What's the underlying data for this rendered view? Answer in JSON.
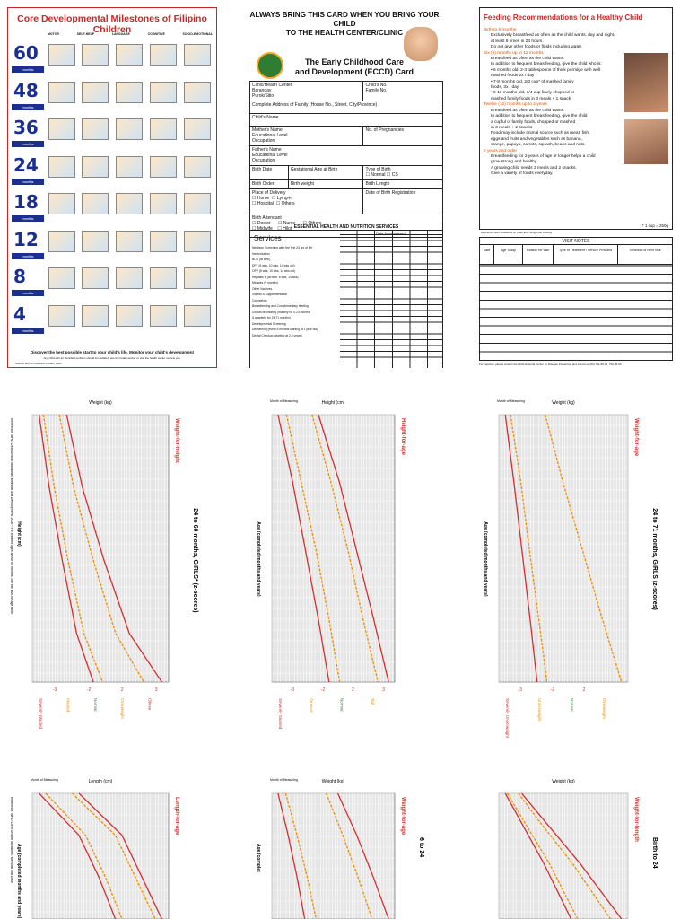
{
  "milestones": {
    "title": "Core Developmental Milestones of Filipino Children",
    "columns": [
      "MOTOR",
      "SELF-HELP",
      "LANGUAGE",
      "COGNITIVE",
      "SOCIO-EMOTIONAL"
    ],
    "ages": [
      {
        "value": "60",
        "unit": "months"
      },
      {
        "value": "48",
        "unit": "months"
      },
      {
        "value": "36",
        "unit": "months"
      },
      {
        "value": "24",
        "unit": "months"
      },
      {
        "value": "18",
        "unit": "months"
      },
      {
        "value": "12",
        "unit": "months"
      },
      {
        "value": "8",
        "unit": "months"
      },
      {
        "value": "4",
        "unit": "months"
      }
    ],
    "footer": "Discover the best possible start to your child's life. Monitor your child's development",
    "footer_small": "Any child with an identified problem should immediately see the health worker or visit the health center nearest you.",
    "source": "Source: ECCD Checklist, DSWD, 2005"
  },
  "eccd": {
    "top_line1": "ALWAYS BRING THIS CARD WHEN YOU BRING YOUR CHILD",
    "top_line2": "TO THE HEALTH CENTER/CLINIC",
    "title_line1": "The Early Childhood Care",
    "title_line2": "and Development (ECCD) Card",
    "fields": {
      "clinic": "Clinic/Health Center",
      "barangay": "Barangay",
      "purok": "Purok/Sitio",
      "child_no": "Child's No.",
      "family_no": "Family No.",
      "address": "Complete Address of Family (House No., Street, City/Province)",
      "child_name": "Child's Name",
      "mother_name": "Mother's Name",
      "mother_edu": "Educational Level",
      "mother_occ": "Occupation",
      "pregnancies": "No. of Pregnancies",
      "father_name": "Father's Name",
      "father_edu": "Educational Level",
      "father_occ": "Occupation",
      "birth_date": "Birth Date",
      "gest_age": "Gestational Age at Birth",
      "type_birth": "Type of Birth",
      "normal": "Normal",
      "cs": "CS",
      "birth_order": "Birth Order",
      "birth_weight": "Birth weight",
      "birth_length": "Birth Length",
      "place_delivery": "Place of Delivery",
      "home": "Home",
      "lying_in": "Lying-in",
      "hospital": "Hospital",
      "others": "Others",
      "reg_date": "Date of Birth Registration",
      "attendant": "Birth Attendant",
      "doctor": "Doctor",
      "nurse": "Nurse",
      "midwife": "Midwife",
      "hilot": "Hilot",
      "others2": "Others"
    },
    "services_header": "ESSENTIAL HEALTH AND NUTRITION SERVICES",
    "services_title": "Services",
    "date_admin": "Date Administered",
    "service_rows": [
      "Newborn Screening after the first 24 hrs of life",
      "Immunization",
      "BCG (at birth)",
      "DPT (6 wks, 10 wks, 14 wks old)",
      "OPV (6 wks, 10 wks, 14 wks old)",
      "Hepatitis B (at birth, 6 wks, 14 wks)",
      "Measles (9 months)",
      "Other Vaccines",
      "Vitamin A Supplementation",
      "Counseling",
      "Breastfeeding and Complementary feeding",
      "Growth Monitoring (monthly for 0-23 months",
      "& quarterly for 24-71 months)",
      "Developmental Screening",
      "Deworming (every 6 months starting at 1 year old)",
      "Dental Checkup (starting at 2-5 years)"
    ]
  },
  "feeding": {
    "title": "Feeding Recommendations for a Healthy Child",
    "sections": [
      {
        "head": "Birth to 6 months",
        "lines": [
          "Exclusively breastfeed as often as the child wants, day and night,",
          "at least 8 times in 24 hours.",
          "Do not give other foods or fluids including water."
        ]
      },
      {
        "head": "Six (6) months up to 12 months",
        "lines": [
          "Breastfeed as often as the child wants.",
          "In addition to frequent breastfeeding, give the child who is:",
          "• 6 months old, 2-3 tablespoons of thick porridge with well",
          "mashed foods 2x / day",
          "• 7-8 months old, 2/3 cup* of mashed family",
          "foods, 3x / day",
          "• 9-11 months old, 3/4 cup finely chopped or",
          "mashed family foods in 3 meals + 1 snack"
        ]
      },
      {
        "head": "Twelve (12) months up to 2 years",
        "lines": [
          "Breastfeed as often as the child wants.",
          "In addition to frequent breastfeeding, give the child",
          "a cupful of family foods, chopped or mashed",
          "in 3 meals + 2 snacks",
          "Food may include animal source such as meat, fish,",
          "eggs and fruits and vegetables such as banana,",
          "orange, papaya, carrots, squash, beans and nuts."
        ]
      },
      {
        "head": "2 years and older",
        "lines": [
          "Breastfeeding for 2 years of age or longer helps a child",
          "grow strong and healthy.",
          "A growing child needs 3 meals and 2 snacks.",
          "Give a variety of foods everyday."
        ]
      }
    ],
    "cup_note": "* 1 cup = 250g",
    "reference": "Reference: WHO Guidelines on Infant and Young Child Feeding",
    "visit_title": "VISIT NOTES",
    "visit_cols": [
      "Date",
      "Age Today",
      "Reason for Visit",
      "Type of Treatment / Service Provided",
      "Schedule of Next Visit"
    ],
    "inquiries": "For inquiries, please contact the DOH-National Center for Disease Prevention and Control at (02) 711-95-05, 732-95-56"
  },
  "charts": [
    {
      "name": "weight-for-height",
      "title": "Weight-for-height",
      "subtitle": "24 to 60 months, GIRLS* (z-scores)",
      "xlabel": "Weight (kg)",
      "ylabel": "Height (cm)",
      "note": "Reference: WHO Child Growth Standards: Methods and Development, 2006 * For children ages above 60 months, use the BMI-for-age table.",
      "zones": [
        "Severely Wasted",
        "Wasted",
        "Normal",
        "Overweight",
        "Obese"
      ],
      "zone_marks": [
        "-3",
        "-2",
        "2",
        "3"
      ],
      "chart_data": {
        "type": "line",
        "series": [
          {
            "name": "-3",
            "values": [
              7,
              8.4,
              10.2,
              12.2,
              14.5
            ]
          },
          {
            "name": "-2",
            "values": [
              7.6,
              9.1,
              11,
              13.2,
              15.8
            ]
          },
          {
            "name": "2",
            "values": [
              9.8,
              11.8,
              14.5,
              17.6,
              21.5
            ]
          },
          {
            "name": "3",
            "values": [
              10.8,
              13,
              16,
              19.5,
              24
            ]
          }
        ],
        "x": [
          65,
          80,
          95,
          110,
          120
        ]
      }
    },
    {
      "name": "height-for-age",
      "title": "Height-for-age",
      "xlabel": "Height (cm)",
      "ylabel": "Age (completed months and years)",
      "month_label": "Month of Measuring",
      "zones": [
        "Severely Stunted",
        "Stunted",
        "Normal",
        "Tall"
      ],
      "zone_marks": [
        "-3",
        "-2",
        "2",
        "3"
      ],
      "chart_data": {
        "type": "line",
        "series": [
          {
            "name": "-3",
            "values": [
              76,
              83,
              89,
              95,
              100
            ]
          },
          {
            "name": "-2",
            "values": [
              80,
              87,
              94,
              100,
              105
            ]
          },
          {
            "name": "2",
            "values": [
              92,
              101,
              109,
              116,
              123
            ]
          },
          {
            "name": "3",
            "values": [
              95,
              105,
              113,
              121,
              128
            ]
          }
        ],
        "x": [
          24,
          36,
          48,
          60,
          71
        ]
      }
    },
    {
      "name": "weight-for-age",
      "title": "Weight-for-age",
      "subtitle": "24 to 71 months, GIRLS (z-scores)",
      "xlabel": "Weight (kg)",
      "ylabel": "Age (completed months and years)",
      "month_label": "Month of Measuring",
      "zones": [
        "Severely Underweight",
        "Underweight",
        "Normal",
        "Overweight"
      ],
      "zone_marks": [
        "-3",
        "-2",
        "2"
      ],
      "chart_data": {
        "type": "line",
        "series": [
          {
            "name": "-3",
            "values": [
              8.1,
              9.6,
              11,
              12.4,
              13.6
            ]
          },
          {
            "name": "-2",
            "values": [
              9,
              10.8,
              12.3,
              13.9,
              15.3
            ]
          },
          {
            "name": "2",
            "values": [
              15,
              18.1,
              21.5,
              24.9,
              28.2
            ]
          }
        ],
        "x": [
          24,
          36,
          48,
          60,
          71
        ]
      }
    },
    {
      "name": "length-for-age",
      "title": "Length-for-age",
      "xlabel": "Length (cm)",
      "ylabel": "Age (completed months and years)",
      "month_label": "Month of Measuring",
      "note": "Reference: WHO Child Growth Standards: Methods and Deve",
      "chart_data": {
        "type": "line",
        "series": [
          {
            "name": "-3",
            "values": [
              43,
              55,
              61,
              66
            ]
          },
          {
            "name": "-2",
            "values": [
              45,
              57,
              63,
              68
            ]
          },
          {
            "name": "2",
            "values": [
              53,
              66,
              72,
              78
            ]
          },
          {
            "name": "3",
            "values": [
              55,
              68,
              74,
              80
            ]
          }
        ],
        "x": [
          0,
          6,
          12,
          18
        ]
      }
    },
    {
      "name": "weight-for-age-6-24",
      "title": "Weight-for-age",
      "subtitle": "6 to 24",
      "xlabel": "Weight (kg)",
      "ylabel": "Age (complet",
      "month_label": "Month of Measuring",
      "chart_data": {
        "type": "line",
        "series": [
          {
            "name": "-3",
            "values": [
              5.5,
              6.3,
              7,
              7.6
            ]
          },
          {
            "name": "-2",
            "values": [
              6.1,
              7,
              7.8,
              8.5
            ]
          },
          {
            "name": "2",
            "values": [
              9.3,
              10.6,
              11.8,
              12.9
            ]
          },
          {
            "name": "3",
            "values": [
              10.2,
              11.7,
              13,
              14.2
            ]
          }
        ],
        "x": [
          6,
          12,
          18,
          24
        ]
      }
    },
    {
      "name": "weight-for-length",
      "title": "Weight-for-length",
      "subtitle": "Birth to 24",
      "xlabel": "Weight (kg)",
      "chart_data": {
        "type": "line",
        "series": [
          {
            "name": "-3",
            "values": [
              2,
              3.4,
              5.5,
              8
            ]
          },
          {
            "name": "-2",
            "values": [
              2.2,
              3.7,
              6,
              8.6
            ]
          },
          {
            "name": "2",
            "values": [
              3.2,
              5.1,
              8.1,
              11.6
            ]
          },
          {
            "name": "3",
            "values": [
              3.5,
              5.6,
              8.8,
              12.6
            ]
          }
        ],
        "x": [
          45,
          55,
          70,
          90
        ]
      }
    }
  ]
}
